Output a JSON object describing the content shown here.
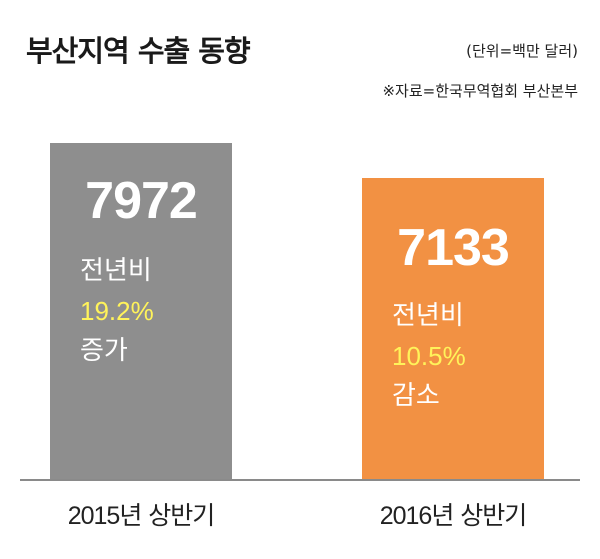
{
  "header": {
    "title": "부산지역 수출 동향",
    "unit": "(단위=백만 달러)",
    "source": "※자료=한국무역협회 부산본부"
  },
  "chart_data": {
    "type": "bar",
    "title": "부산지역 수출 동향",
    "categories": [
      "2015년 상반기",
      "2016년 상반기"
    ],
    "values": [
      7972,
      7133
    ],
    "ylim": [
      0,
      8800
    ],
    "grid": false,
    "colors": [
      "#8e8e8e",
      "#f29143"
    ],
    "bar_labels": [
      {
        "value_text": "7972",
        "line1": "전년비",
        "pct": "19.2%",
        "line3": "증가"
      },
      {
        "value_text": "7133",
        "line1": "전년비",
        "pct": "10.5%",
        "line3": "감소"
      }
    ]
  }
}
